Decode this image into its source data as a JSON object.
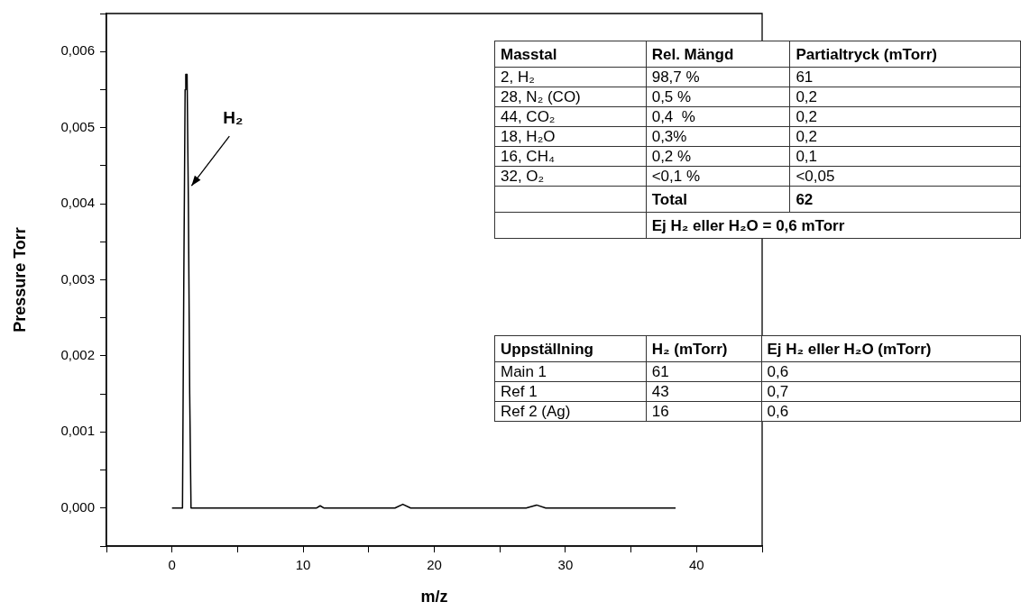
{
  "chart_data": {
    "type": "line",
    "xlabel": "m/z",
    "ylabel": "Pressure Torr",
    "color": "#000000",
    "x": [
      0,
      0.8,
      0.9,
      1.0,
      1.05,
      1.15,
      1.25,
      1.35,
      1.45,
      2,
      5,
      9,
      10,
      11,
      11.3,
      11.6,
      13,
      17,
      17.6,
      18.2,
      20,
      27,
      27.8,
      28.5,
      30,
      38.4
    ],
    "values": [
      0,
      0,
      0.003,
      0.0055,
      0.0057,
      0.0057,
      0.004,
      0.0015,
      0,
      0,
      0,
      0,
      0,
      0,
      3e-05,
      0,
      0,
      0,
      5e-05,
      0,
      0,
      0,
      4e-05,
      0,
      0,
      0
    ],
    "xlim": [
      -5,
      45
    ],
    "xticks": [
      {
        "value": -5,
        "label": null
      },
      0,
      {
        "value": 5,
        "label": null
      },
      10,
      {
        "value": 15,
        "label": null
      },
      20,
      {
        "value": 25,
        "label": null
      },
      30,
      {
        "value": 35,
        "label": null
      },
      40,
      {
        "value": 45,
        "label": null
      }
    ],
    "ylim": [
      -0.0005,
      0.0065
    ],
    "yticks": [
      {
        "value": -0.0005,
        "label": null
      },
      {
        "value": 0,
        "label": "0,000"
      },
      {
        "value": 0.0005,
        "label": null
      },
      {
        "value": 0.001,
        "label": "0,001"
      },
      {
        "value": 0.0015,
        "label": null
      },
      {
        "value": 0.002,
        "label": "0,002"
      },
      {
        "value": 0.0025,
        "label": null
      },
      {
        "value": 0.003,
        "label": "0,003"
      },
      {
        "value": 0.0035,
        "label": null
      },
      {
        "value": 0.004,
        "label": "0,004"
      },
      {
        "value": 0.0045,
        "label": null
      },
      {
        "value": 0.005,
        "label": "0,005"
      },
      {
        "value": 0.0055,
        "label": null
      },
      {
        "value": 0.006,
        "label": "0,006"
      },
      {
        "value": 0.0065,
        "label": null
      }
    ],
    "legend": false,
    "marker": "none",
    "line_style": "solid",
    "annotations": [
      {
        "text": "H₂",
        "x": 1.35,
        "y": 0.0042
      },
      "Masstal",
      "Rel. Mängd",
      "Partialtryck (mTorr)",
      "2, H₂",
      "98,7 %",
      "61",
      "28, N₂ (CO)",
      "0,5 %",
      "0,2",
      "44, CO₂",
      "0,4  %",
      "0,2",
      "18, H₂O",
      "0,3%",
      "0,2",
      "16, CH₄",
      "0,2 %",
      "0,1",
      "32, O₂",
      "<0,1 %",
      "<0,05",
      null,
      "Total",
      "62",
      null,
      "Ej H₂ eller H₂O = 0,6 mTorr",
      null,
      "Uppställning",
      "H₂ (mTorr)",
      "Ej H₂ eller H₂O (mTorr)",
      "Main 1",
      "61",
      "0,6",
      "Ref 1",
      "43",
      "0,7",
      "Ref 2 (Ag)",
      "16",
      "0,6"
    ]
  }
}
